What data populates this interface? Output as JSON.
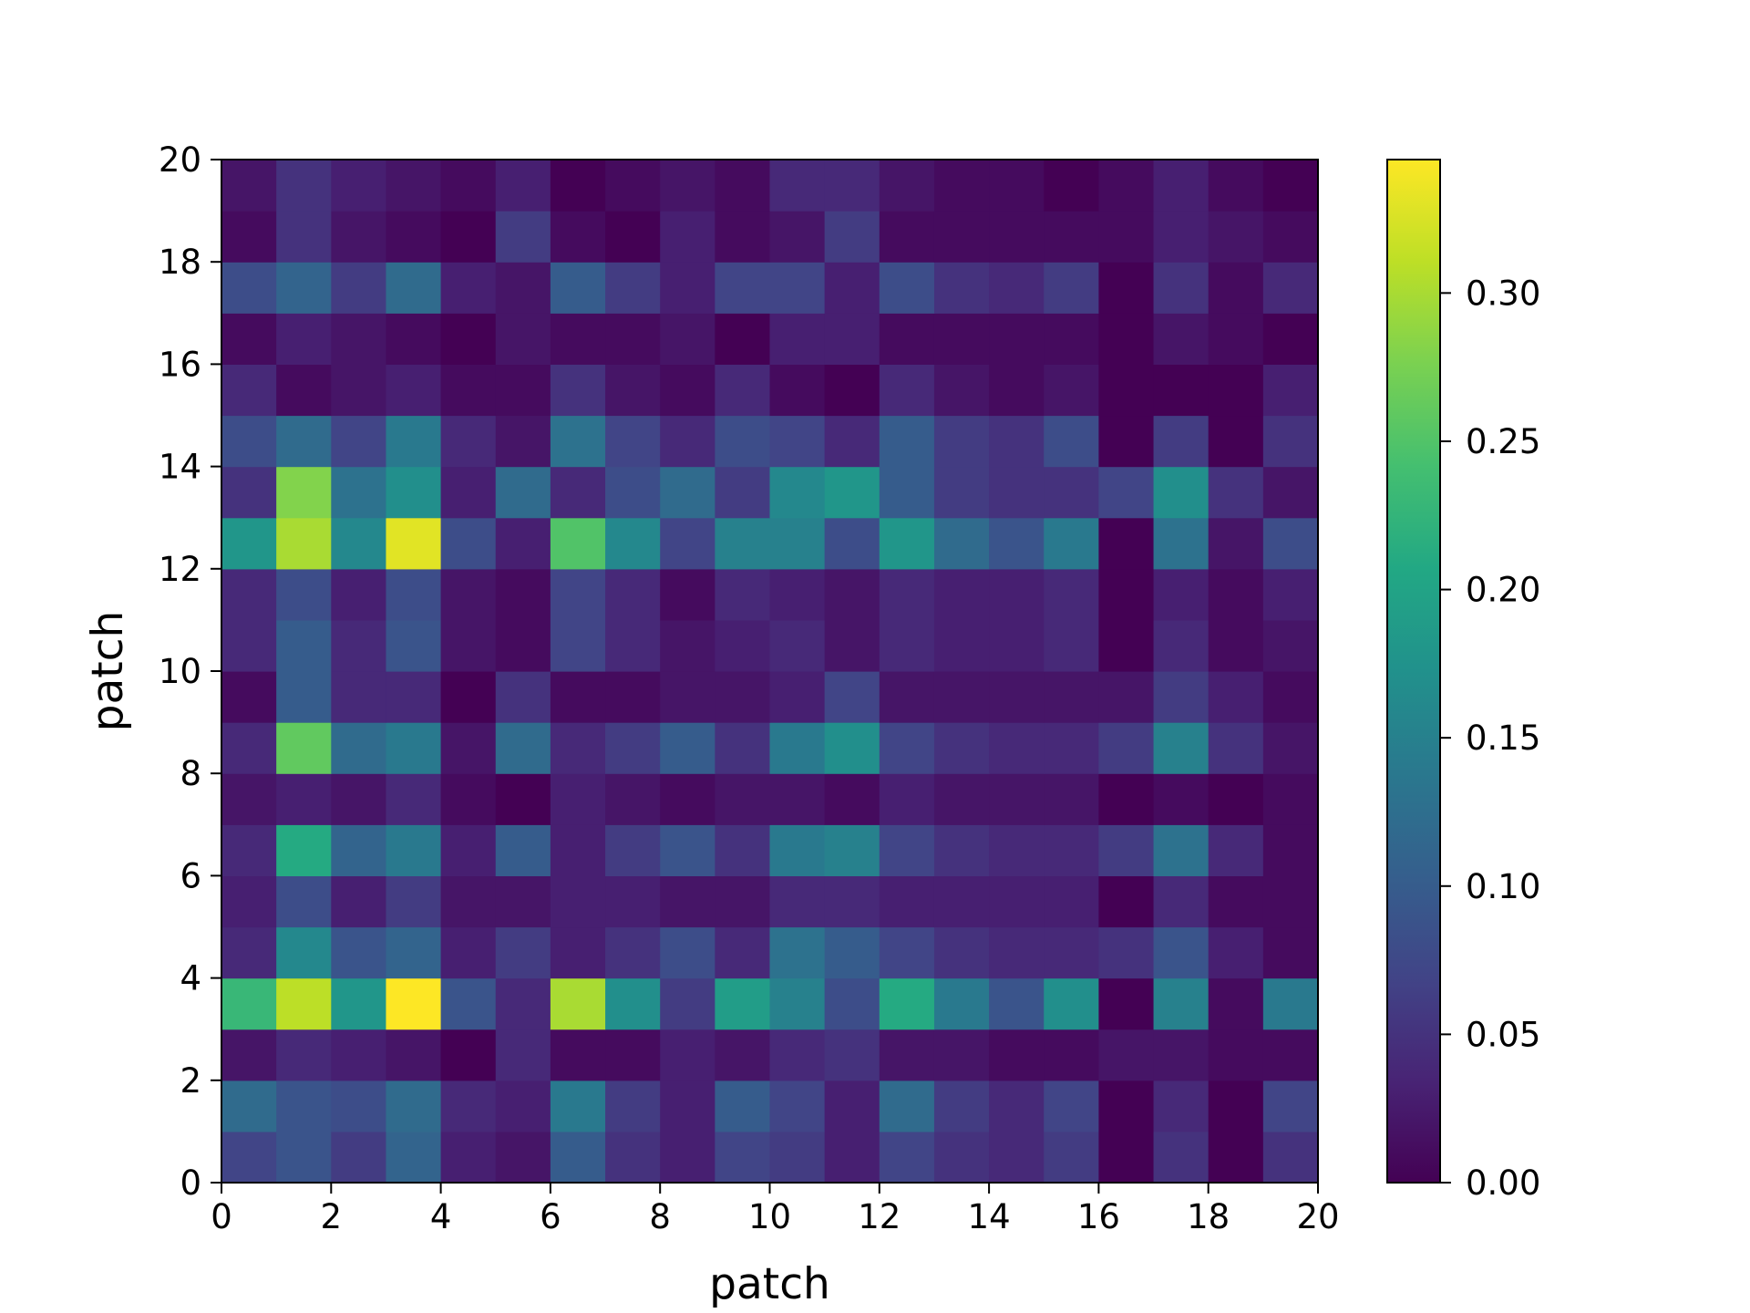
{
  "chart_data": {
    "type": "heatmap",
    "title": "",
    "xlabel": "patch",
    "ylabel": "patch",
    "xlim": [
      0,
      20
    ],
    "ylim": [
      0,
      20
    ],
    "x_ticks": [
      "0",
      "2",
      "4",
      "6",
      "8",
      "10",
      "12",
      "14",
      "16",
      "18",
      "20"
    ],
    "y_ticks": [
      "0",
      "2",
      "4",
      "6",
      "8",
      "10",
      "12",
      "14",
      "16",
      "18",
      "20"
    ],
    "colormap": "viridis",
    "colorbar": {
      "vmin": 0.0,
      "vmax": 0.345,
      "ticks": [
        0.0,
        0.05,
        0.1,
        0.15,
        0.2,
        0.25,
        0.3
      ],
      "tick_labels": [
        "0.00",
        "0.05",
        "0.10",
        "0.15",
        "0.20",
        "0.25",
        "0.30"
      ]
    },
    "grid": false,
    "rows_note_bottom_to_top": true,
    "values": [
      [
        0.07,
        0.09,
        0.06,
        0.11,
        0.03,
        0.02,
        0.1,
        0.05,
        0.03,
        0.07,
        0.06,
        0.03,
        0.07,
        0.05,
        0.04,
        0.06,
        0.0,
        0.05,
        0.0,
        0.05
      ],
      [
        0.12,
        0.09,
        0.08,
        0.12,
        0.04,
        0.03,
        0.14,
        0.06,
        0.03,
        0.1,
        0.07,
        0.03,
        0.12,
        0.06,
        0.04,
        0.07,
        0.0,
        0.04,
        0.0,
        0.07
      ],
      [
        0.02,
        0.04,
        0.03,
        0.02,
        0.0,
        0.04,
        0.01,
        0.01,
        0.03,
        0.02,
        0.04,
        0.05,
        0.02,
        0.02,
        0.01,
        0.01,
        0.02,
        0.02,
        0.01,
        0.01
      ],
      [
        0.23,
        0.31,
        0.18,
        0.345,
        0.09,
        0.04,
        0.3,
        0.17,
        0.06,
        0.19,
        0.15,
        0.08,
        0.21,
        0.14,
        0.09,
        0.17,
        0.0,
        0.15,
        0.01,
        0.14
      ],
      [
        0.04,
        0.16,
        0.09,
        0.11,
        0.03,
        0.06,
        0.03,
        0.05,
        0.08,
        0.04,
        0.13,
        0.1,
        0.07,
        0.05,
        0.04,
        0.04,
        0.05,
        0.09,
        0.03,
        0.01
      ],
      [
        0.03,
        0.08,
        0.03,
        0.06,
        0.02,
        0.02,
        0.03,
        0.03,
        0.02,
        0.02,
        0.04,
        0.04,
        0.03,
        0.03,
        0.03,
        0.03,
        0.0,
        0.04,
        0.01,
        0.01
      ],
      [
        0.04,
        0.21,
        0.11,
        0.14,
        0.03,
        0.1,
        0.03,
        0.06,
        0.09,
        0.05,
        0.14,
        0.15,
        0.07,
        0.05,
        0.04,
        0.04,
        0.06,
        0.13,
        0.04,
        0.01
      ],
      [
        0.02,
        0.03,
        0.02,
        0.04,
        0.01,
        0.0,
        0.03,
        0.02,
        0.01,
        0.02,
        0.02,
        0.01,
        0.03,
        0.02,
        0.02,
        0.02,
        0.0,
        0.01,
        0.0,
        0.01
      ],
      [
        0.04,
        0.26,
        0.12,
        0.14,
        0.02,
        0.12,
        0.04,
        0.06,
        0.1,
        0.05,
        0.14,
        0.17,
        0.07,
        0.05,
        0.04,
        0.04,
        0.06,
        0.15,
        0.05,
        0.02
      ],
      [
        0.01,
        0.1,
        0.04,
        0.04,
        0.0,
        0.05,
        0.01,
        0.01,
        0.02,
        0.02,
        0.03,
        0.07,
        0.02,
        0.02,
        0.02,
        0.02,
        0.02,
        0.06,
        0.03,
        0.01
      ],
      [
        0.04,
        0.1,
        0.04,
        0.09,
        0.02,
        0.01,
        0.07,
        0.04,
        0.02,
        0.03,
        0.04,
        0.02,
        0.04,
        0.03,
        0.03,
        0.04,
        0.0,
        0.04,
        0.01,
        0.02
      ],
      [
        0.04,
        0.08,
        0.03,
        0.08,
        0.02,
        0.01,
        0.07,
        0.04,
        0.01,
        0.04,
        0.03,
        0.02,
        0.04,
        0.03,
        0.03,
        0.04,
        0.0,
        0.03,
        0.01,
        0.03
      ],
      [
        0.18,
        0.3,
        0.16,
        0.33,
        0.08,
        0.03,
        0.25,
        0.16,
        0.07,
        0.15,
        0.15,
        0.08,
        0.18,
        0.12,
        0.09,
        0.14,
        0.0,
        0.13,
        0.02,
        0.08
      ],
      [
        0.05,
        0.28,
        0.13,
        0.17,
        0.03,
        0.12,
        0.04,
        0.08,
        0.12,
        0.06,
        0.16,
        0.18,
        0.1,
        0.06,
        0.05,
        0.05,
        0.07,
        0.17,
        0.05,
        0.02
      ],
      [
        0.08,
        0.12,
        0.07,
        0.14,
        0.04,
        0.02,
        0.13,
        0.07,
        0.04,
        0.08,
        0.07,
        0.04,
        0.1,
        0.06,
        0.05,
        0.08,
        0.0,
        0.06,
        0.0,
        0.05
      ],
      [
        0.04,
        0.01,
        0.02,
        0.03,
        0.01,
        0.01,
        0.05,
        0.02,
        0.01,
        0.04,
        0.01,
        0.0,
        0.04,
        0.02,
        0.01,
        0.02,
        0.0,
        0.0,
        0.0,
        0.03
      ],
      [
        0.01,
        0.03,
        0.02,
        0.01,
        0.0,
        0.02,
        0.01,
        0.01,
        0.02,
        0.0,
        0.03,
        0.03,
        0.01,
        0.01,
        0.01,
        0.01,
        0.0,
        0.02,
        0.01,
        0.0
      ],
      [
        0.08,
        0.11,
        0.06,
        0.12,
        0.03,
        0.02,
        0.1,
        0.06,
        0.03,
        0.07,
        0.07,
        0.03,
        0.08,
        0.05,
        0.04,
        0.06,
        0.0,
        0.05,
        0.01,
        0.04
      ],
      [
        0.01,
        0.05,
        0.02,
        0.01,
        0.0,
        0.06,
        0.01,
        0.0,
        0.03,
        0.01,
        0.02,
        0.06,
        0.01,
        0.01,
        0.01,
        0.01,
        0.01,
        0.03,
        0.02,
        0.01
      ],
      [
        0.02,
        0.05,
        0.03,
        0.02,
        0.01,
        0.03,
        0.0,
        0.01,
        0.02,
        0.01,
        0.04,
        0.04,
        0.02,
        0.01,
        0.01,
        0.0,
        0.01,
        0.03,
        0.01,
        0.0
      ]
    ]
  }
}
